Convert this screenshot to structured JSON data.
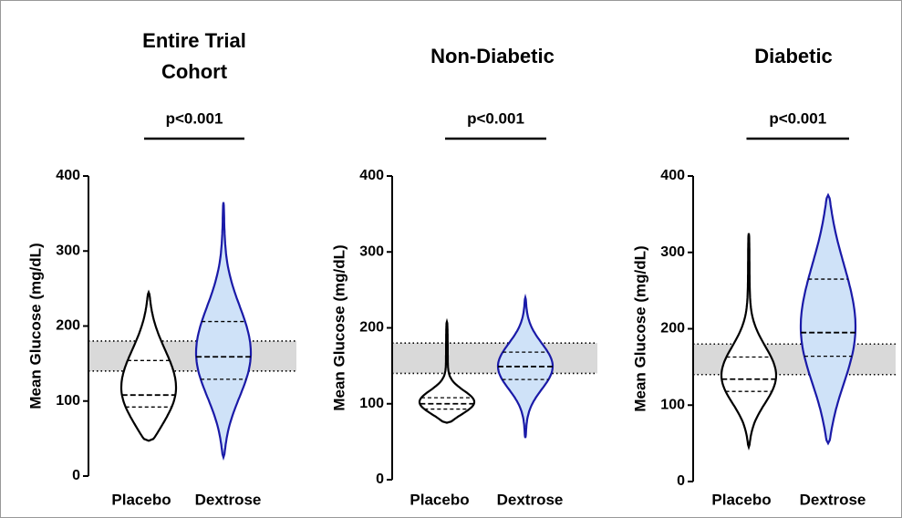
{
  "chart_data": [
    {
      "type": "violin",
      "title": "Entire Trial Cohort",
      "annotation": "p<0.001",
      "ylabel": "Mean Glucose (mg/dL)",
      "categories": [
        "Placebo",
        "Dextrose"
      ],
      "ylim": [
        0,
        400
      ],
      "yticks": [
        0,
        100,
        200,
        300,
        400
      ],
      "reference_band": [
        140,
        180
      ],
      "series": [
        {
          "color": "#000000",
          "fill": "#ffffff",
          "min": 47,
          "q1": 92,
          "median": 108,
          "q3": 154,
          "max": 245
        },
        {
          "color": "#1a1aa8",
          "fill": "#cfe2f8",
          "min": 25,
          "q1": 129,
          "median": 159,
          "q3": 206,
          "max": 365
        }
      ]
    },
    {
      "type": "violin",
      "title": "Non-Diabetic",
      "annotation": "p<0.001",
      "ylabel": "Mean Glucose (mg/dL)",
      "categories": [
        "Placebo",
        "Dextrose"
      ],
      "ylim": [
        0,
        400
      ],
      "yticks": [
        0,
        100,
        200,
        300,
        400
      ],
      "reference_band": [
        140,
        180
      ],
      "series": [
        {
          "color": "#000000",
          "fill": "#ffffff",
          "min": 75,
          "q1": 93,
          "median": 100,
          "q3": 108,
          "max": 208
        },
        {
          "color": "#1a1aa8",
          "fill": "#cfe2f8",
          "min": 55,
          "q1": 132,
          "median": 149,
          "q3": 168,
          "max": 240
        }
      ]
    },
    {
      "type": "violin",
      "title": "Diabetic",
      "annotation": "p<0.001",
      "ylabel": "Mean Glucose (mg/dL)",
      "categories": [
        "Placebo",
        "Dextrose"
      ],
      "ylim": [
        0,
        400
      ],
      "yticks": [
        0,
        100,
        200,
        300,
        400
      ],
      "reference_band": [
        140,
        180
      ],
      "series": [
        {
          "color": "#000000",
          "fill": "#ffffff",
          "min": 45,
          "q1": 118,
          "median": 134,
          "q3": 163,
          "max": 325
        },
        {
          "color": "#1a1aa8",
          "fill": "#cfe2f8",
          "min": 50,
          "q1": 164,
          "median": 195,
          "q3": 265,
          "max": 375
        }
      ]
    }
  ]
}
